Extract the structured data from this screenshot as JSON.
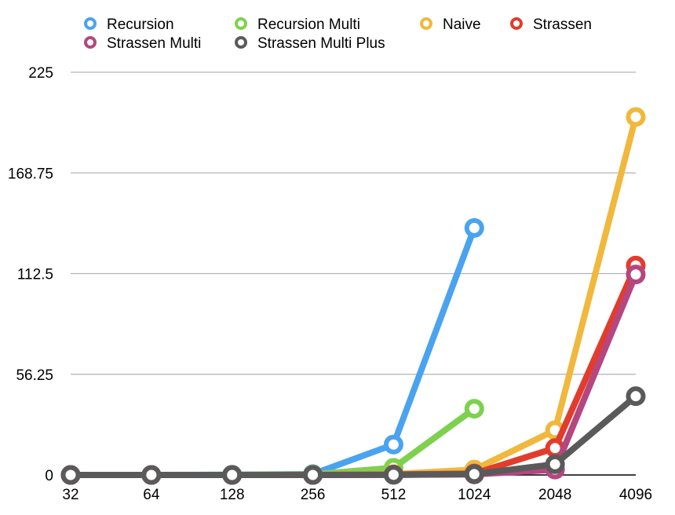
{
  "chart_data": {
    "type": "line",
    "title": "",
    "xlabel": "",
    "ylabel": "",
    "categories": [
      "32",
      "64",
      "128",
      "256",
      "512",
      "1024",
      "2048",
      "4096"
    ],
    "yticks": [
      "0",
      "56.25",
      "112.5",
      "168.75",
      "225"
    ],
    "ylim": [
      0,
      225
    ],
    "grid": true,
    "legend_position": "top",
    "series": [
      {
        "name": "Recursion",
        "color": "#4aa3ef",
        "values": [
          0,
          0,
          0.1,
          0.5,
          17,
          138,
          null,
          null
        ]
      },
      {
        "name": "Recursion Multi",
        "color": "#7ed14e",
        "values": [
          0,
          0,
          0.05,
          0.3,
          4,
          37,
          null,
          null
        ]
      },
      {
        "name": "Naive",
        "color": "#f0b83c",
        "values": [
          0,
          0,
          0,
          0.1,
          0.5,
          3,
          25,
          200
        ]
      },
      {
        "name": "Strassen",
        "color": "#e23c2c",
        "values": [
          0,
          0,
          0,
          0,
          0.2,
          0.8,
          15,
          117
        ]
      },
      {
        "name": "Strassen Multi",
        "color": "#b5467f",
        "values": [
          0,
          0,
          0,
          0,
          0.1,
          0.3,
          3,
          112
        ]
      },
      {
        "name": "Strassen Multi Plus",
        "color": "#5a5a5a",
        "values": [
          0,
          0,
          0,
          0,
          0.1,
          0.5,
          6,
          44
        ]
      }
    ]
  }
}
